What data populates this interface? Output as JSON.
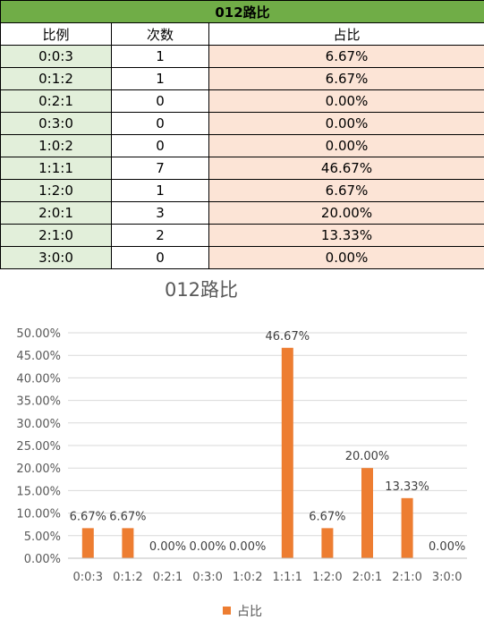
{
  "table": {
    "title": "012路比",
    "headers": [
      "比例",
      "次数",
      "占比"
    ],
    "rows": [
      {
        "ratio": "0:0:3",
        "count": "1",
        "pct": "6.67%"
      },
      {
        "ratio": "0:1:2",
        "count": "1",
        "pct": "6.67%"
      },
      {
        "ratio": "0:2:1",
        "count": "0",
        "pct": "0.00%"
      },
      {
        "ratio": "0:3:0",
        "count": "0",
        "pct": "0.00%"
      },
      {
        "ratio": "1:0:2",
        "count": "0",
        "pct": "0.00%"
      },
      {
        "ratio": "1:1:1",
        "count": "7",
        "pct": "46.67%"
      },
      {
        "ratio": "1:2:0",
        "count": "1",
        "pct": "6.67%"
      },
      {
        "ratio": "2:0:1",
        "count": "3",
        "pct": "20.00%"
      },
      {
        "ratio": "2:1:0",
        "count": "2",
        "pct": "13.33%"
      },
      {
        "ratio": "3:0:0",
        "count": "0",
        "pct": "0.00%"
      }
    ]
  },
  "chart_data": {
    "type": "bar",
    "title": "012路比",
    "categories": [
      "0:0:3",
      "0:1:2",
      "0:2:1",
      "0:3:0",
      "1:0:2",
      "1:1:1",
      "1:2:0",
      "2:0:1",
      "2:1:0",
      "3:0:0"
    ],
    "series": [
      {
        "name": "占比",
        "values": [
          6.67,
          6.67,
          0.0,
          0.0,
          0.0,
          46.67,
          6.67,
          20.0,
          13.33,
          0.0
        ],
        "labels": [
          "6.67%",
          "6.67%",
          "0.00%",
          "0.00%",
          "0.00%",
          "46.67%",
          "6.67%",
          "20.00%",
          "13.33%",
          "0.00%"
        ]
      }
    ],
    "yticks": [
      "0.00%",
      "5.00%",
      "10.00%",
      "15.00%",
      "20.00%",
      "25.00%",
      "30.00%",
      "35.00%",
      "40.00%",
      "45.00%",
      "50.00%"
    ],
    "ylim": [
      0,
      50
    ],
    "grid": true,
    "legend_position": "bottom",
    "bar_color": "#ed7d31",
    "grid_color": "#d9d9d9"
  }
}
